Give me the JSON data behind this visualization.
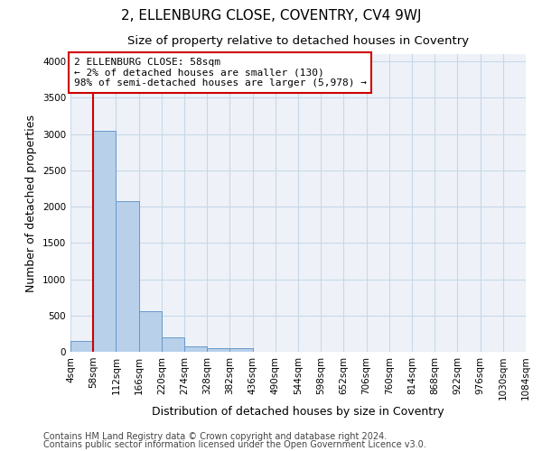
{
  "title": "2, ELLENBURG CLOSE, COVENTRY, CV4 9WJ",
  "subtitle": "Size of property relative to detached houses in Coventry",
  "xlabel": "Distribution of detached houses by size in Coventry",
  "ylabel": "Number of detached properties",
  "bin_labels": [
    "4sqm",
    "58sqm",
    "112sqm",
    "166sqm",
    "220sqm",
    "274sqm",
    "328sqm",
    "382sqm",
    "436sqm",
    "490sqm",
    "544sqm",
    "598sqm",
    "652sqm",
    "706sqm",
    "760sqm",
    "814sqm",
    "868sqm",
    "922sqm",
    "976sqm",
    "1030sqm",
    "1084sqm"
  ],
  "bar_heights": [
    150,
    3050,
    2070,
    555,
    205,
    75,
    55,
    50,
    0,
    0,
    0,
    0,
    0,
    0,
    0,
    0,
    0,
    0,
    0,
    0
  ],
  "bar_color": "#b8d0ea",
  "bar_edge_color": "#6699cc",
  "grid_color": "#c8d8e8",
  "background_color": "#eef2f8",
  "vline_x": 1,
  "vline_color": "#cc0000",
  "annotation_text": "2 ELLENBURG CLOSE: 58sqm\n← 2% of detached houses are smaller (130)\n98% of semi-detached houses are larger (5,978) →",
  "annotation_box_color": "#ffffff",
  "annotation_border_color": "#cc0000",
  "ylim": [
    0,
    4100
  ],
  "yticks": [
    0,
    500,
    1000,
    1500,
    2000,
    2500,
    3000,
    3500,
    4000
  ],
  "footer1": "Contains HM Land Registry data © Crown copyright and database right 2024.",
  "footer2": "Contains public sector information licensed under the Open Government Licence v3.0.",
  "title_fontsize": 11,
  "subtitle_fontsize": 9.5,
  "axis_label_fontsize": 9,
  "tick_fontsize": 7.5,
  "footer_fontsize": 7,
  "annot_fontsize": 8
}
